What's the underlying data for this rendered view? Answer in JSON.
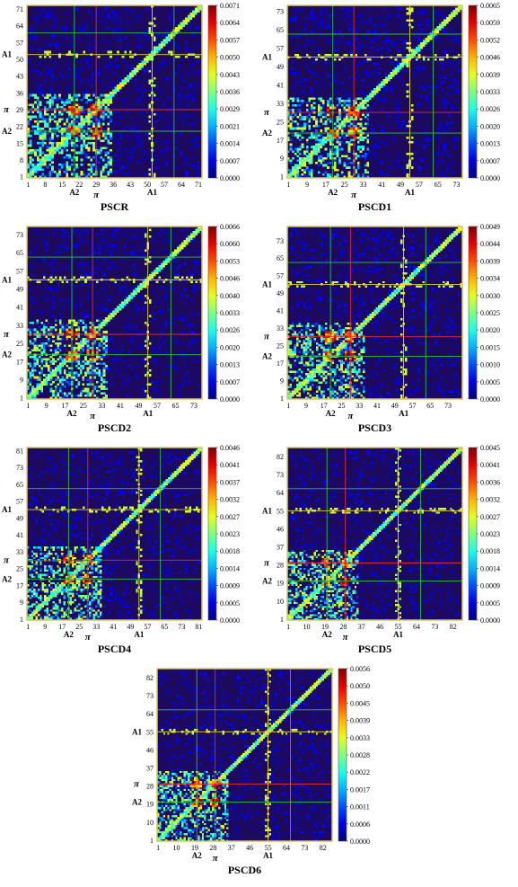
{
  "chart_data": [
    {
      "type": "heatmap",
      "title": "PSCR",
      "n": 72,
      "x_ticks": [
        "1",
        "8",
        "15",
        "22",
        "29",
        "36",
        "43",
        "50",
        "57",
        "64",
        "71"
      ],
      "y_ticks": [
        "1",
        "8",
        "15",
        "22",
        "29",
        "36",
        "43",
        "50",
        "57",
        "64",
        "71"
      ],
      "colorbar_ticks": [
        "0.0071",
        "0.0064",
        "0.0057",
        "0.0050",
        "0.0043",
        "0.0036",
        "0.0029",
        "0.0021",
        "0.0014",
        "0.0007",
        "0.0000"
      ],
      "vmin": 0,
      "vmax": 0.0071,
      "region_labels": [
        {
          "label": "A2",
          "pos": 20,
          "color": "#2fbf3a"
        },
        {
          "label": "π",
          "pos": 29,
          "color": "#e02a2a"
        },
        {
          "label": "A1",
          "pos": 52,
          "color": "#e8d43a"
        },
        {
          "label": "",
          "pos": 61,
          "color": "#2fbf3a"
        }
      ]
    },
    {
      "type": "heatmap",
      "title": "PSCD1",
      "n": 75,
      "x_ticks": [
        "1",
        "9",
        "17",
        "25",
        "33",
        "41",
        "49",
        "57",
        "65",
        "73"
      ],
      "y_ticks": [
        "1",
        "9",
        "17",
        "25",
        "33",
        "41",
        "49",
        "57",
        "65",
        "73"
      ],
      "colorbar_ticks": [
        "0.0065",
        "0.0059",
        "0.0052",
        "0.0046",
        "0.0039",
        "0.0033",
        "0.0026",
        "0.0020",
        "0.0013",
        "0.0007",
        "0.0000"
      ],
      "vmin": 0,
      "vmax": 0.0065,
      "region_labels": [
        {
          "label": "A2",
          "pos": 20,
          "color": "#2fbf3a"
        },
        {
          "label": "π",
          "pos": 29,
          "color": "#e02a2a"
        },
        {
          "label": "A1",
          "pos": 53,
          "color": "#e8d43a"
        },
        {
          "label": "",
          "pos": 63,
          "color": "#2fbf3a"
        }
      ]
    },
    {
      "type": "heatmap",
      "title": "PSCD2",
      "n": 76,
      "x_ticks": [
        "1",
        "9",
        "17",
        "25",
        "33",
        "41",
        "49",
        "57",
        "65",
        "73"
      ],
      "y_ticks": [
        "1",
        "9",
        "17",
        "25",
        "33",
        "41",
        "49",
        "57",
        "65",
        "73"
      ],
      "colorbar_ticks": [
        "0.0066",
        "0.0060",
        "0.0053",
        "0.0046",
        "0.0040",
        "0.0033",
        "0.0026",
        "0.0020",
        "0.0013",
        "0.0007",
        "0.0000"
      ],
      "vmin": 0,
      "vmax": 0.0066,
      "region_labels": [
        {
          "label": "A2",
          "pos": 20,
          "color": "#2fbf3a"
        },
        {
          "label": "π",
          "pos": 29,
          "color": "#e02a2a"
        },
        {
          "label": "A1",
          "pos": 53,
          "color": "#e8d43a"
        },
        {
          "label": "",
          "pos": 63,
          "color": "#2fbf3a"
        }
      ]
    },
    {
      "type": "heatmap",
      "title": "PSCD3",
      "n": 79,
      "x_ticks": [
        "1",
        "9",
        "17",
        "25",
        "33",
        "41",
        "49",
        "57",
        "65",
        "73"
      ],
      "y_ticks": [
        "1",
        "9",
        "17",
        "25",
        "33",
        "41",
        "49",
        "57",
        "65",
        "73"
      ],
      "colorbar_ticks": [
        "0.0049",
        "0.0044",
        "0.0039",
        "0.0034",
        "0.0030",
        "0.0025",
        "0.0020",
        "0.0015",
        "0.0010",
        "0.0005",
        "0.0000"
      ],
      "vmin": 0,
      "vmax": 0.0049,
      "region_labels": [
        {
          "label": "A2",
          "pos": 20,
          "color": "#2fbf3a"
        },
        {
          "label": "π",
          "pos": 29,
          "color": "#e02a2a"
        },
        {
          "label": "A1",
          "pos": 53,
          "color": "#e8d43a"
        },
        {
          "label": "",
          "pos": 63,
          "color": "#2fbf3a"
        }
      ]
    },
    {
      "type": "heatmap",
      "title": "PSCD4",
      "n": 82,
      "x_ticks": [
        "1",
        "9",
        "17",
        "25",
        "33",
        "41",
        "49",
        "57",
        "65",
        "73",
        "81"
      ],
      "y_ticks": [
        "1",
        "9",
        "17",
        "25",
        "33",
        "41",
        "49",
        "57",
        "65",
        "73",
        "81"
      ],
      "colorbar_ticks": [
        "0.0046",
        "0.0041",
        "0.0037",
        "0.0032",
        "0.0027",
        "0.0023",
        "0.0018",
        "0.0014",
        "0.0009",
        "0.0005",
        "0.0000"
      ],
      "vmin": 0,
      "vmax": 0.0046,
      "region_labels": [
        {
          "label": "A2",
          "pos": 20,
          "color": "#2fbf3a"
        },
        {
          "label": "π",
          "pos": 29,
          "color": "#e02a2a"
        },
        {
          "label": "A1",
          "pos": 53,
          "color": "#e8d43a"
        },
        {
          "label": "",
          "pos": 63,
          "color": "#2fbf3a"
        }
      ]
    },
    {
      "type": "heatmap",
      "title": "PSCD5",
      "n": 86,
      "x_ticks": [
        "1",
        "10",
        "19",
        "28",
        "37",
        "46",
        "55",
        "64",
        "73",
        "82"
      ],
      "y_ticks": [
        "1",
        "10",
        "19",
        "28",
        "37",
        "46",
        "55",
        "64",
        "73",
        "82"
      ],
      "colorbar_ticks": [
        "0.0045",
        "0.0041",
        "0.0036",
        "0.0032",
        "0.0027",
        "0.0023",
        "0.0018",
        "0.0014",
        "0.0009",
        "0.0005",
        "0.0000"
      ],
      "vmin": 0,
      "vmax": 0.0045,
      "region_labels": [
        {
          "label": "A2",
          "pos": 20,
          "color": "#2fbf3a"
        },
        {
          "label": "π",
          "pos": 29,
          "color": "#e02a2a"
        },
        {
          "label": "A1",
          "pos": 55,
          "color": "#e8d43a"
        },
        {
          "label": "",
          "pos": 66,
          "color": "#2fbf3a"
        }
      ]
    },
    {
      "type": "heatmap",
      "title": "PSCD6",
      "n": 86,
      "x_ticks": [
        "1",
        "10",
        "19",
        "28",
        "37",
        "46",
        "55",
        "64",
        "73",
        "82"
      ],
      "y_ticks": [
        "1",
        "10",
        "19",
        "28",
        "37",
        "46",
        "55",
        "64",
        "73",
        "82"
      ],
      "colorbar_ticks": [
        "0.0056",
        "0.0050",
        "0.0045",
        "0.0039",
        "0.0033",
        "0.0028",
        "0.0022",
        "0.0017",
        "0.0011",
        "0.0006",
        "0.0000"
      ],
      "vmin": 0,
      "vmax": 0.0056,
      "region_labels": [
        {
          "label": "A2",
          "pos": 20,
          "color": "#2fbf3a"
        },
        {
          "label": "π",
          "pos": 29,
          "color": "#e02a2a"
        },
        {
          "label": "A1",
          "pos": 55,
          "color": "#e8d43a"
        },
        {
          "label": "",
          "pos": 66,
          "color": "#2fbf3a"
        }
      ]
    }
  ]
}
